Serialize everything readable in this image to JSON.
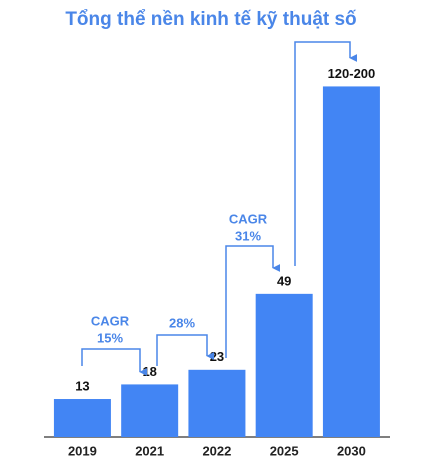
{
  "chart_data": {
    "type": "bar",
    "title": "Tổng thể nền kinh tế kỹ thuật số",
    "categories": [
      "2019",
      "2021",
      "2022",
      "2025",
      "2030"
    ],
    "values": [
      13,
      18,
      23,
      49,
      120
    ],
    "value_labels": [
      "13",
      "18",
      "23",
      "49",
      "120-200"
    ],
    "color": "#4285f4",
    "ylim": [
      0,
      140
    ],
    "annotations": [
      {
        "lines": [
          "CAGR",
          "15%"
        ]
      },
      {
        "lines": [
          "28%"
        ]
      },
      {
        "lines": [
          "CAGR",
          "31%"
        ]
      }
    ]
  }
}
